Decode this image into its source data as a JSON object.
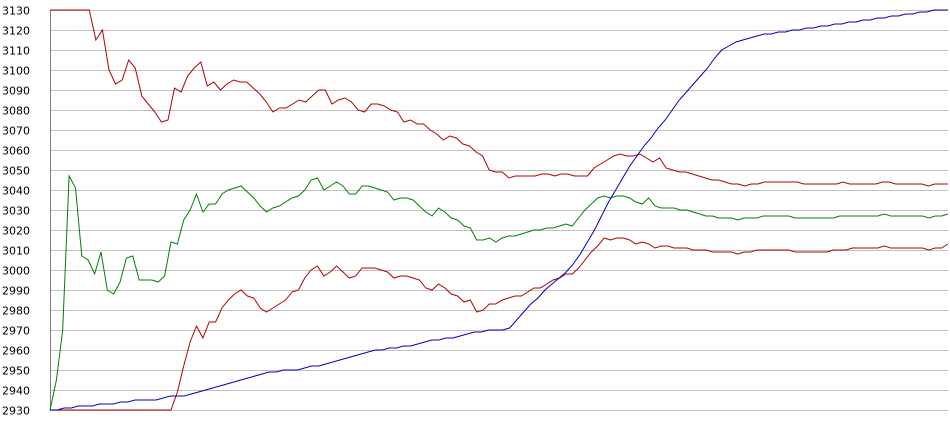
{
  "chart_data": {
    "type": "line",
    "title": "",
    "xlabel": "",
    "ylabel": "",
    "ylim": [
      2930,
      3130
    ],
    "yticks": [
      2930,
      2940,
      2950,
      2960,
      2970,
      2980,
      2990,
      3000,
      3010,
      3020,
      3030,
      3040,
      3050,
      3060,
      3070,
      3080,
      3090,
      3100,
      3110,
      3120,
      3130
    ],
    "grid": true,
    "legend": "none",
    "series": [
      {
        "color": "#b00000",
        "values": [
          3130,
          3130,
          3130,
          3130,
          3130,
          3130,
          3130,
          3115,
          3120,
          3100,
          3093,
          3095,
          3105,
          3101,
          3087,
          3083,
          3079,
          3074,
          3075,
          3091,
          3089,
          3097,
          3101,
          3104,
          3092,
          3094,
          3090,
          3093,
          3095,
          3094,
          3094,
          3091,
          3088,
          3084,
          3079,
          3081,
          3081,
          3083,
          3085,
          3084,
          3087,
          3090,
          3090,
          3083,
          3085,
          3086,
          3084,
          3080,
          3079,
          3083,
          3083,
          3082,
          3080,
          3079,
          3074,
          3075,
          3073,
          3073,
          3070,
          3068,
          3065,
          3067,
          3066,
          3063,
          3062,
          3059,
          3057,
          3050,
          3049,
          3049,
          3046,
          3047,
          3047,
          3047,
          3047,
          3048,
          3048,
          3047,
          3048,
          3048,
          3047,
          3047,
          3047,
          3051,
          3053,
          3055,
          3057,
          3058,
          3057,
          3057,
          3058,
          3056,
          3054,
          3056,
          3051,
          3050,
          3049,
          3049,
          3048,
          3047,
          3046,
          3045,
          3045,
          3044,
          3043,
          3043,
          3042,
          3043,
          3043,
          3044,
          3044,
          3044,
          3044,
          3044,
          3044,
          3043,
          3043,
          3043,
          3043,
          3043,
          3043,
          3044,
          3043,
          3043,
          3043,
          3043,
          3043,
          3044,
          3044,
          3043,
          3043,
          3043,
          3043,
          3043,
          3042,
          3043,
          3043,
          3043
        ]
      },
      {
        "color": "#008000",
        "values": [
          2930,
          2945,
          2970,
          3047,
          3041,
          3007,
          3005,
          2998,
          3009,
          2990,
          2988,
          2994,
          3006,
          3007,
          2995,
          2995,
          2995,
          2994,
          2997,
          3014,
          3013,
          3025,
          3030,
          3038,
          3029,
          3033,
          3033,
          3038,
          3040,
          3041,
          3042,
          3039,
          3036,
          3032,
          3029,
          3031,
          3032,
          3034,
          3036,
          3037,
          3040,
          3045,
          3046,
          3040,
          3042,
          3044,
          3042,
          3038,
          3038,
          3042,
          3042,
          3041,
          3040,
          3039,
          3035,
          3036,
          3036,
          3035,
          3032,
          3029,
          3027,
          3031,
          3029,
          3026,
          3025,
          3022,
          3021,
          3015,
          3015,
          3016,
          3014,
          3016,
          3017,
          3017,
          3018,
          3019,
          3020,
          3020,
          3021,
          3021,
          3022,
          3023,
          3022,
          3026,
          3030,
          3033,
          3036,
          3037,
          3036,
          3037,
          3037,
          3036,
          3034,
          3033,
          3036,
          3032,
          3031,
          3031,
          3031,
          3030,
          3030,
          3029,
          3028,
          3027,
          3027,
          3026,
          3026,
          3026,
          3025,
          3026,
          3026,
          3026,
          3027,
          3027,
          3027,
          3027,
          3027,
          3026,
          3026,
          3026,
          3026,
          3026,
          3026,
          3026,
          3027,
          3027,
          3027,
          3027,
          3027,
          3027,
          3027,
          3028,
          3027,
          3027,
          3027,
          3027,
          3027,
          3027,
          3026,
          3027,
          3027,
          3028
        ]
      },
      {
        "color": "#b00000",
        "values": [
          2930,
          2930,
          2930,
          2930,
          2930,
          2930,
          2930,
          2930,
          2930,
          2930,
          2930,
          2930,
          2930,
          2930,
          2930,
          2930,
          2930,
          2930,
          2930,
          2930,
          2939,
          2952,
          2964,
          2972,
          2966,
          2974,
          2974,
          2981,
          2985,
          2988,
          2990,
          2987,
          2986,
          2981,
          2979,
          2981,
          2983,
          2985,
          2989,
          2990,
          2996,
          3000,
          3002,
          2997,
          2999,
          3002,
          2999,
          2996,
          2997,
          3001,
          3001,
          3001,
          3000,
          2999,
          2996,
          2997,
          2997,
          2996,
          2995,
          2991,
          2990,
          2993,
          2991,
          2988,
          2987,
          2984,
          2985,
          2979,
          2980,
          2983,
          2983,
          2985,
          2986,
          2987,
          2987,
          2989,
          2991,
          2991,
          2993,
          2995,
          2996,
          2998,
          2998,
          3001,
          3005,
          3009,
          3012,
          3016,
          3015,
          3016,
          3016,
          3015,
          3013,
          3014,
          3013,
          3011,
          3012,
          3012,
          3011,
          3011,
          3011,
          3010,
          3010,
          3010,
          3009,
          3009,
          3009,
          3009,
          3008,
          3009,
          3009,
          3010,
          3010,
          3010,
          3010,
          3010,
          3010,
          3009,
          3009,
          3009,
          3009,
          3009,
          3009,
          3010,
          3010,
          3010,
          3011,
          3011,
          3011,
          3011,
          3011,
          3012,
          3011,
          3011,
          3011,
          3011,
          3011,
          3011,
          3010,
          3011,
          3011,
          3013
        ]
      },
      {
        "color": "#0000c0",
        "values": [
          2930,
          2930,
          2931,
          2931,
          2932,
          2932,
          2932,
          2933,
          2933,
          2933,
          2934,
          2934,
          2935,
          2935,
          2935,
          2935,
          2936,
          2937,
          2937,
          2937,
          2938,
          2939,
          2940,
          2941,
          2942,
          2943,
          2944,
          2945,
          2946,
          2947,
          2948,
          2949,
          2949,
          2950,
          2950,
          2950,
          2951,
          2952,
          2952,
          2953,
          2954,
          2955,
          2956,
          2957,
          2958,
          2959,
          2960,
          2960,
          2961,
          2961,
          2962,
          2962,
          2963,
          2964,
          2965,
          2965,
          2966,
          2966,
          2967,
          2968,
          2969,
          2969,
          2970,
          2970,
          2970,
          2971,
          2975,
          2979,
          2983,
          2986,
          2990,
          2993,
          2996,
          2999,
          3003,
          3008,
          3014,
          3020,
          3027,
          3034,
          3040,
          3046,
          3052,
          3057,
          3062,
          3066,
          3071,
          3075,
          3080,
          3085,
          3089,
          3093,
          3097,
          3101,
          3106,
          3110,
          3112,
          3114,
          3115,
          3116,
          3117,
          3118,
          3118,
          3119,
          3119,
          3120,
          3120,
          3121,
          3121,
          3122,
          3122,
          3123,
          3123,
          3124,
          3124,
          3125,
          3125,
          3126,
          3126,
          3127,
          3127,
          3128,
          3128,
          3129,
          3129,
          3130,
          3130,
          3130
        ]
      }
    ]
  }
}
